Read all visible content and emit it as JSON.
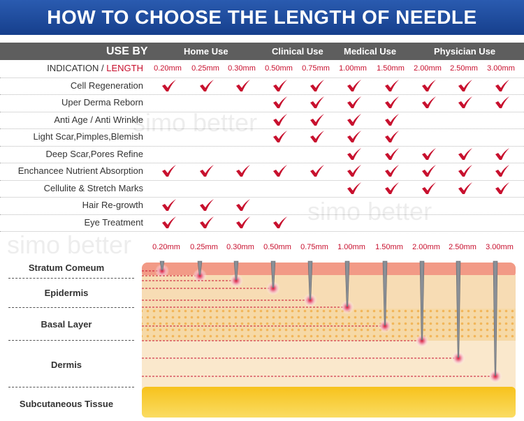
{
  "title": "HOW TO CHOOSE THE LENGTH OF NEEDLE",
  "header": {
    "use_by": "USE BY",
    "groups": [
      "Home Use",
      "Clinical Use",
      "Medical Use",
      "Physician Use"
    ]
  },
  "indication_label": "INDICATION",
  "separator": " / ",
  "length_label": "LENGTH",
  "lengths": [
    "0.20mm",
    "0.25mm",
    "0.30mm",
    "0.50mm",
    "0.75mm",
    "1.00mm",
    "1.50mm",
    "2.00mm",
    "2.50mm",
    "3.00mm"
  ],
  "rows": [
    {
      "label": "Cell Regeneration",
      "checks": [
        1,
        1,
        1,
        1,
        1,
        1,
        1,
        1,
        1,
        1
      ]
    },
    {
      "label": "Uper Derma Reborn",
      "checks": [
        0,
        0,
        0,
        1,
        1,
        1,
        1,
        1,
        1,
        1
      ]
    },
    {
      "label": "Anti Age / Anti Wrinkle",
      "checks": [
        0,
        0,
        0,
        1,
        1,
        1,
        1,
        0,
        0,
        0
      ]
    },
    {
      "label": "Light Scar,Pimples,Blemish",
      "checks": [
        0,
        0,
        0,
        1,
        1,
        1,
        1,
        0,
        0,
        0
      ]
    },
    {
      "label": "Deep Scar,Pores Refine",
      "checks": [
        0,
        0,
        0,
        0,
        0,
        1,
        1,
        1,
        1,
        1
      ]
    },
    {
      "label": "Enchancee Nutrient Absorption",
      "checks": [
        1,
        1,
        1,
        1,
        1,
        1,
        1,
        1,
        1,
        1
      ]
    },
    {
      "label": "Cellulite & Stretch Marks",
      "checks": [
        0,
        0,
        0,
        0,
        0,
        1,
        1,
        1,
        1,
        1
      ]
    },
    {
      "label": "Hair Re-growth",
      "checks": [
        1,
        1,
        1,
        0,
        0,
        0,
        0,
        0,
        0,
        0
      ]
    },
    {
      "label": "Eye Treatment",
      "checks": [
        1,
        1,
        1,
        1,
        0,
        0,
        0,
        0,
        0,
        0
      ]
    }
  ],
  "skin_layers": [
    "Stratum Comeum",
    "Epidermis",
    "Basal Layer",
    "Dermis",
    "Subcutaneous Tissue"
  ],
  "watermark": "simo better",
  "colors": {
    "banner": "#1f4e9e",
    "header": "#5e5e5e",
    "check": "#c8102e",
    "stratum": "#f29a86",
    "epidermis": "#f7dcb4",
    "basal": "#f6d9a6",
    "dermis": "#fae8cc",
    "subcutaneous": "#f9c91a",
    "needle": "#8a8f96"
  }
}
